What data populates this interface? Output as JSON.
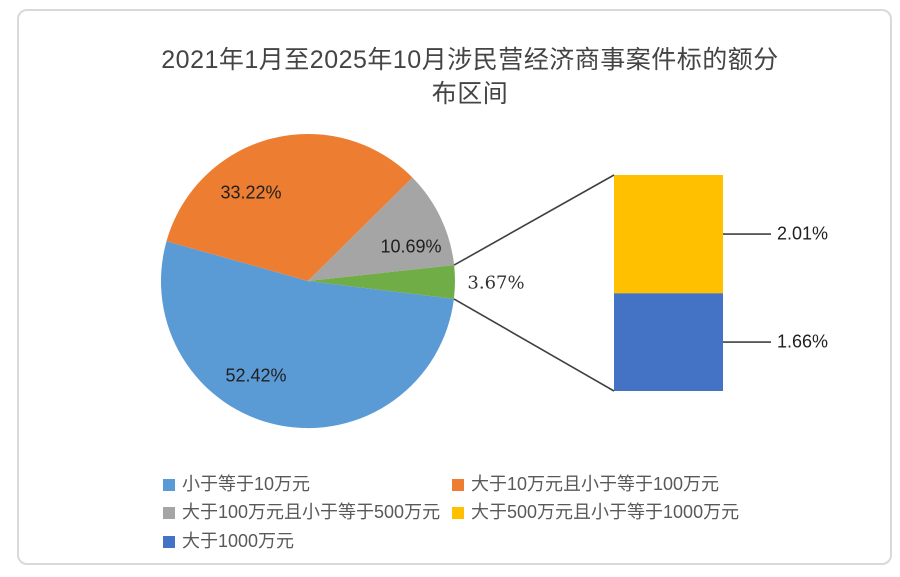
{
  "title": {
    "text": "2021年1月至2025年10月涉民营经济商事案件标的额分布区间",
    "line1": "2021年1月至2025年10月涉民营经济商事案件标的额分",
    "line2": "布区间"
  },
  "chart_data": {
    "type": "pie",
    "subtype": "bar-of-pie",
    "title": "2021年1月至2025年10月涉民营经济商事案件标的额分布区间",
    "legend_position": "bottom",
    "pie_slices": [
      {
        "name": "小于等于10万元",
        "value": 52.42,
        "label": "52.42%",
        "color": "#5B9BD5"
      },
      {
        "name": "大于10万元且小于等于100万元",
        "value": 33.22,
        "label": "33.22%",
        "color": "#ED7D31"
      },
      {
        "name": "大于100万元且小于等于500万元",
        "value": 10.69,
        "label": "10.69%",
        "color": "#A5A5A5"
      },
      {
        "name": "",
        "value": 3.67,
        "label": "3.67%",
        "color": "#70AD47"
      }
    ],
    "bar_segments": [
      {
        "name": "大于500万元且小于等于1000万元",
        "value": 2.01,
        "label": "2.01%",
        "color": "#FFC000"
      },
      {
        "name": "大于1000万元",
        "value": 1.66,
        "label": "1.66%",
        "color": "#4472C4"
      }
    ],
    "legend": [
      {
        "label": "小于等于10万元",
        "color": "#5B9BD5"
      },
      {
        "label": "大于10万元且小于等于100万元",
        "color": "#ED7D31"
      },
      {
        "label": "大于100万元且小于等于500万元",
        "color": "#A5A5A5"
      },
      {
        "label": "大于500万元且小于等于1000万元",
        "color": "#FFC000"
      },
      {
        "label": "大于1000万元",
        "color": "#4472C4"
      }
    ],
    "line_color": "#404040"
  }
}
